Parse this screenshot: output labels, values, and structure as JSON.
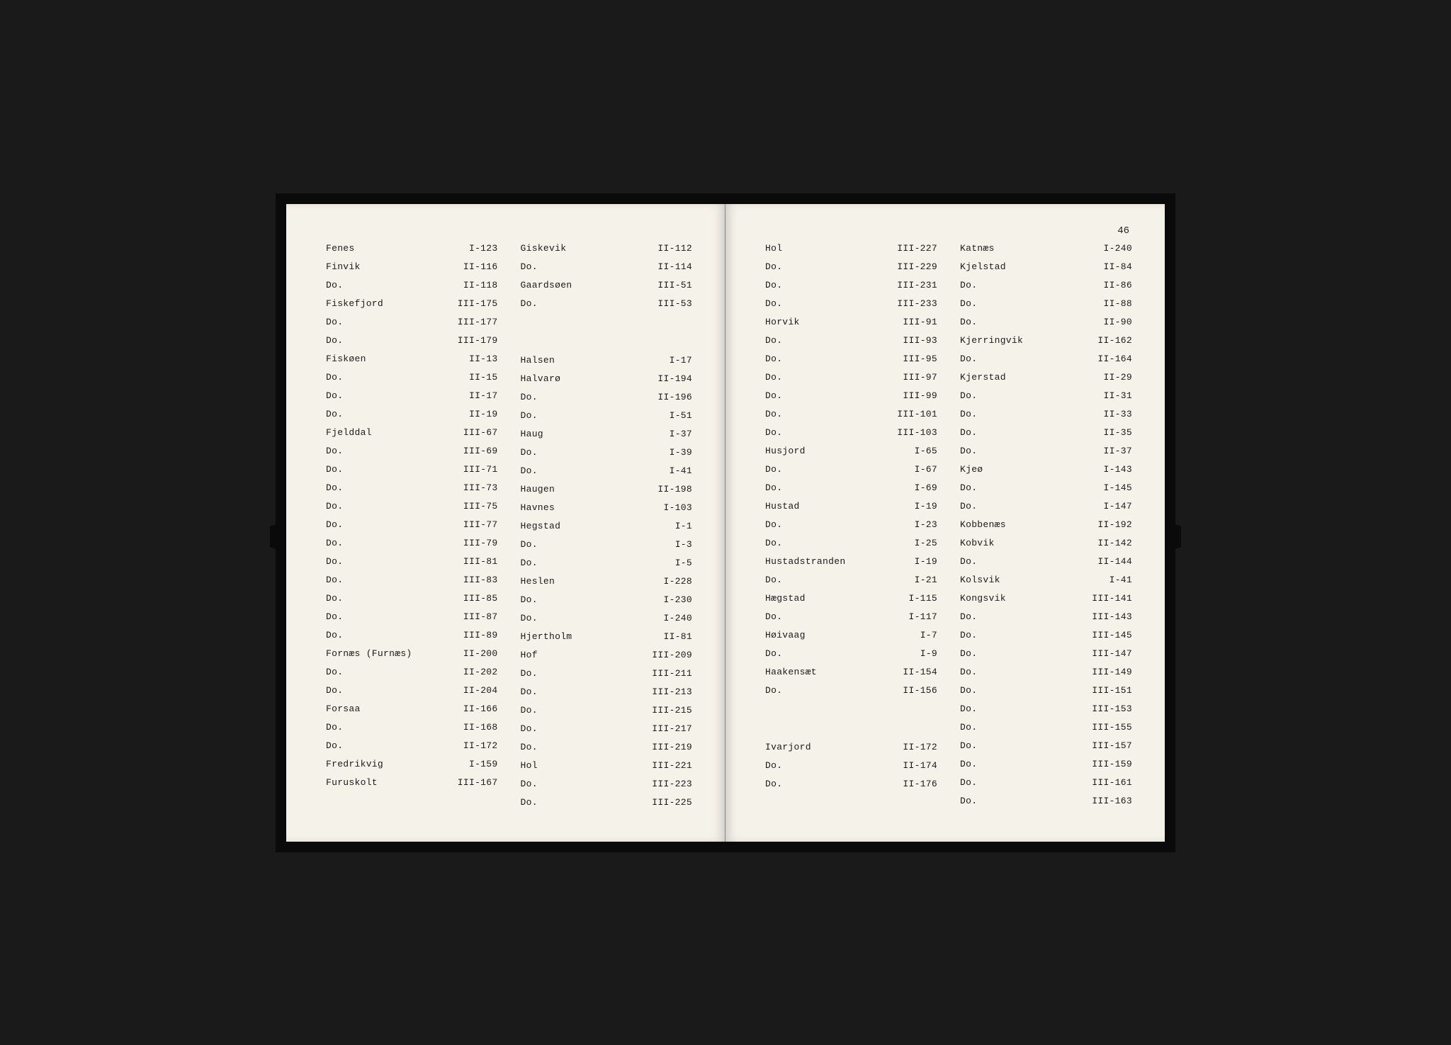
{
  "pageNumber": "46",
  "colors": {
    "page_bg": "#f5f2ea",
    "text": "#1a1a1a",
    "book_bg": "#0a0a0a"
  },
  "typography": {
    "font_family": "Courier New",
    "entry_fontsize": 13,
    "pagenum_fontsize": 14
  },
  "leftPage": {
    "col1": [
      {
        "name": "Fenes",
        "ref": "I-123"
      },
      {
        "name": "Finvik",
        "ref": "II-116"
      },
      {
        "name": "Do.",
        "ref": "II-118"
      },
      {
        "name": "Fiskefjord",
        "ref": "III-175"
      },
      {
        "name": "Do.",
        "ref": "III-177"
      },
      {
        "name": "Do.",
        "ref": "III-179"
      },
      {
        "name": "Fiskøen",
        "ref": "II-13"
      },
      {
        "name": "Do.",
        "ref": "II-15"
      },
      {
        "name": "Do.",
        "ref": "II-17"
      },
      {
        "name": "Do.",
        "ref": "II-19"
      },
      {
        "name": "Fjelddal",
        "ref": "III-67"
      },
      {
        "name": "Do.",
        "ref": "III-69"
      },
      {
        "name": "Do.",
        "ref": "III-71"
      },
      {
        "name": "Do.",
        "ref": "III-73"
      },
      {
        "name": "Do.",
        "ref": "III-75"
      },
      {
        "name": "Do.",
        "ref": "III-77"
      },
      {
        "name": "Do.",
        "ref": "III-79"
      },
      {
        "name": "Do.",
        "ref": "III-81"
      },
      {
        "name": "Do.",
        "ref": "III-83"
      },
      {
        "name": "Do.",
        "ref": "III-85"
      },
      {
        "name": "Do.",
        "ref": "III-87"
      },
      {
        "name": "Do.",
        "ref": "III-89"
      },
      {
        "name": "Fornæs (Furnæs)",
        "ref": "II-200"
      },
      {
        "name": "Do.",
        "ref": "II-202"
      },
      {
        "name": "Do.",
        "ref": "II-204"
      },
      {
        "name": "Forsaa",
        "ref": "II-166"
      },
      {
        "name": "Do.",
        "ref": "II-168"
      },
      {
        "name": "Do.",
        "ref": "II-172"
      },
      {
        "name": "Fredrikvig",
        "ref": "I-159"
      },
      {
        "name": "Furuskolt",
        "ref": "III-167"
      }
    ],
    "col2": [
      {
        "name": "Giskevik",
        "ref": "II-112"
      },
      {
        "name": "Do.",
        "ref": "II-114"
      },
      {
        "name": "Gaardsøen",
        "ref": "III-51"
      },
      {
        "name": "Do.",
        "ref": "III-53"
      },
      {
        "spacer": true
      },
      {
        "spacer": true
      },
      {
        "name": "Halsen",
        "ref": "I-17"
      },
      {
        "name": "Halvarø",
        "ref": "II-194"
      },
      {
        "name": "Do.",
        "ref": "II-196"
      },
      {
        "name": "Do.",
        "ref": "I-51"
      },
      {
        "name": "Haug",
        "ref": "I-37"
      },
      {
        "name": "Do.",
        "ref": "I-39"
      },
      {
        "name": "Do.",
        "ref": "I-41"
      },
      {
        "name": "Haugen",
        "ref": "II-198"
      },
      {
        "name": "Havnes",
        "ref": "I-103"
      },
      {
        "name": "Hegstad",
        "ref": "I-1"
      },
      {
        "name": "Do.",
        "ref": "I-3"
      },
      {
        "name": "Do.",
        "ref": "I-5"
      },
      {
        "name": "Heslen",
        "ref": "I-228"
      },
      {
        "name": "Do.",
        "ref": "I-230"
      },
      {
        "name": "Do.",
        "ref": "I-240"
      },
      {
        "name": "Hjertholm",
        "ref": "II-81"
      },
      {
        "name": "Hof",
        "ref": "III-209"
      },
      {
        "name": "Do.",
        "ref": "III-211"
      },
      {
        "name": "Do.",
        "ref": "III-213"
      },
      {
        "name": "Do.",
        "ref": "III-215"
      },
      {
        "name": "Do.",
        "ref": "III-217"
      },
      {
        "name": "Do.",
        "ref": "III-219"
      },
      {
        "name": "Hol",
        "ref": "III-221"
      },
      {
        "name": "Do.",
        "ref": "III-223"
      },
      {
        "name": "Do.",
        "ref": "III-225"
      }
    ]
  },
  "rightPage": {
    "col1": [
      {
        "name": "Hol",
        "ref": "III-227"
      },
      {
        "name": "Do.",
        "ref": "III-229"
      },
      {
        "name": "Do.",
        "ref": "III-231"
      },
      {
        "name": "Do.",
        "ref": "III-233"
      },
      {
        "name": "Horvik",
        "ref": "III-91"
      },
      {
        "name": "Do.",
        "ref": "III-93"
      },
      {
        "name": "Do.",
        "ref": "III-95"
      },
      {
        "name": "Do.",
        "ref": "III-97"
      },
      {
        "name": "Do.",
        "ref": "III-99"
      },
      {
        "name": "Do.",
        "ref": "III-101"
      },
      {
        "name": "Do.",
        "ref": "III-103"
      },
      {
        "name": "Husjord",
        "ref": "I-65"
      },
      {
        "name": "Do.",
        "ref": "I-67"
      },
      {
        "name": "Do.",
        "ref": "I-69"
      },
      {
        "name": "Hustad",
        "ref": "I-19"
      },
      {
        "name": "Do.",
        "ref": "I-23"
      },
      {
        "name": "Do.",
        "ref": "I-25"
      },
      {
        "name": "Hustadstranden",
        "ref": "I-19"
      },
      {
        "name": "Do.",
        "ref": "I-21"
      },
      {
        "name": "Hægstad",
        "ref": "I-115"
      },
      {
        "name": "Do.",
        "ref": "I-117"
      },
      {
        "name": "Høivaag",
        "ref": "I-7"
      },
      {
        "name": "Do.",
        "ref": "I-9"
      },
      {
        "name": "Haakensæt",
        "ref": "II-154"
      },
      {
        "name": "Do.",
        "ref": "II-156"
      },
      {
        "spacer": true
      },
      {
        "spacer": true
      },
      {
        "name": "Ivarjord",
        "ref": "II-172"
      },
      {
        "name": "Do.",
        "ref": "II-174"
      },
      {
        "name": "Do.",
        "ref": "II-176"
      }
    ],
    "col2": [
      {
        "name": "Katnæs",
        "ref": "I-240"
      },
      {
        "name": "Kjelstad",
        "ref": "II-84"
      },
      {
        "name": "Do.",
        "ref": "II-86"
      },
      {
        "name": "Do.",
        "ref": "II-88"
      },
      {
        "name": "Do.",
        "ref": "II-90"
      },
      {
        "name": "Kjerringvik",
        "ref": "II-162"
      },
      {
        "name": "Do.",
        "ref": "II-164"
      },
      {
        "name": "Kjerstad",
        "ref": "II-29"
      },
      {
        "name": "Do.",
        "ref": "II-31"
      },
      {
        "name": "Do.",
        "ref": "II-33"
      },
      {
        "name": "Do.",
        "ref": "II-35"
      },
      {
        "name": "Do.",
        "ref": "II-37"
      },
      {
        "name": "Kjeø",
        "ref": "I-143"
      },
      {
        "name": "Do.",
        "ref": "I-145"
      },
      {
        "name": "Do.",
        "ref": "I-147"
      },
      {
        "name": "Kobbenæs",
        "ref": "II-192"
      },
      {
        "name": "Kobvik",
        "ref": "II-142"
      },
      {
        "name": "Do.",
        "ref": "II-144"
      },
      {
        "name": "Kolsvik",
        "ref": "I-41"
      },
      {
        "name": "Kongsvik",
        "ref": "III-141"
      },
      {
        "name": "Do.",
        "ref": "III-143"
      },
      {
        "name": "Do.",
        "ref": "III-145"
      },
      {
        "name": "Do.",
        "ref": "III-147"
      },
      {
        "name": "Do.",
        "ref": "III-149"
      },
      {
        "name": "Do.",
        "ref": "III-151"
      },
      {
        "name": "Do.",
        "ref": "III-153"
      },
      {
        "name": "Do.",
        "ref": "III-155"
      },
      {
        "name": "Do.",
        "ref": "III-157"
      },
      {
        "name": "Do.",
        "ref": "III-159"
      },
      {
        "name": "Do.",
        "ref": "III-161"
      },
      {
        "name": "Do.",
        "ref": "III-163"
      }
    ]
  }
}
